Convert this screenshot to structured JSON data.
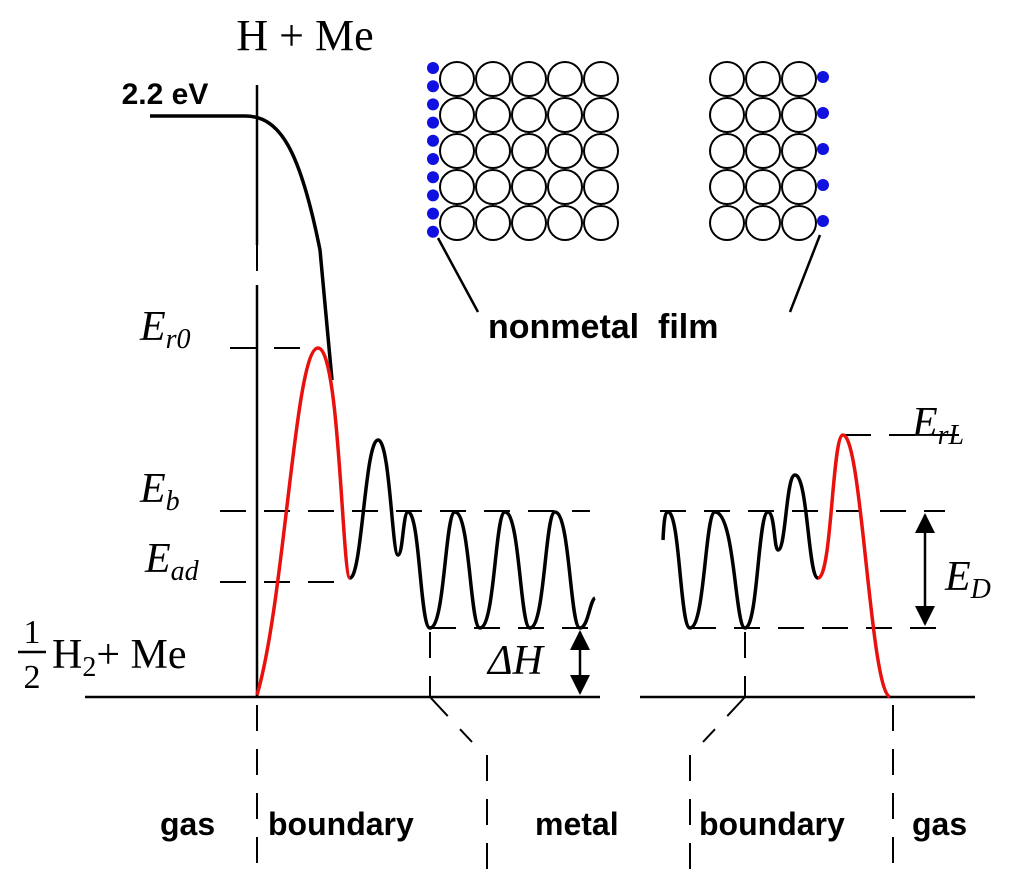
{
  "top_label": "H + Me",
  "energy_label": "2.2 eV",
  "levels": [
    {
      "symbol": "E",
      "subscript": "r0"
    },
    {
      "symbol": "E",
      "subscript": "b"
    },
    {
      "symbol": "E",
      "subscript": "ad"
    }
  ],
  "right_levels": [
    {
      "symbol": "E",
      "subscript": "rL"
    },
    {
      "symbol": "E",
      "subscript": "D"
    }
  ],
  "ground_label": {
    "numerator": "1",
    "denominator": "2",
    "formula": "H",
    "subscript": "2",
    "rest": "+ Me"
  },
  "enthalpy_label": "ΔH",
  "film_label": "nonmetal  film",
  "regions": [
    "gas",
    "boundary",
    "metal",
    "boundary",
    "gas"
  ]
}
